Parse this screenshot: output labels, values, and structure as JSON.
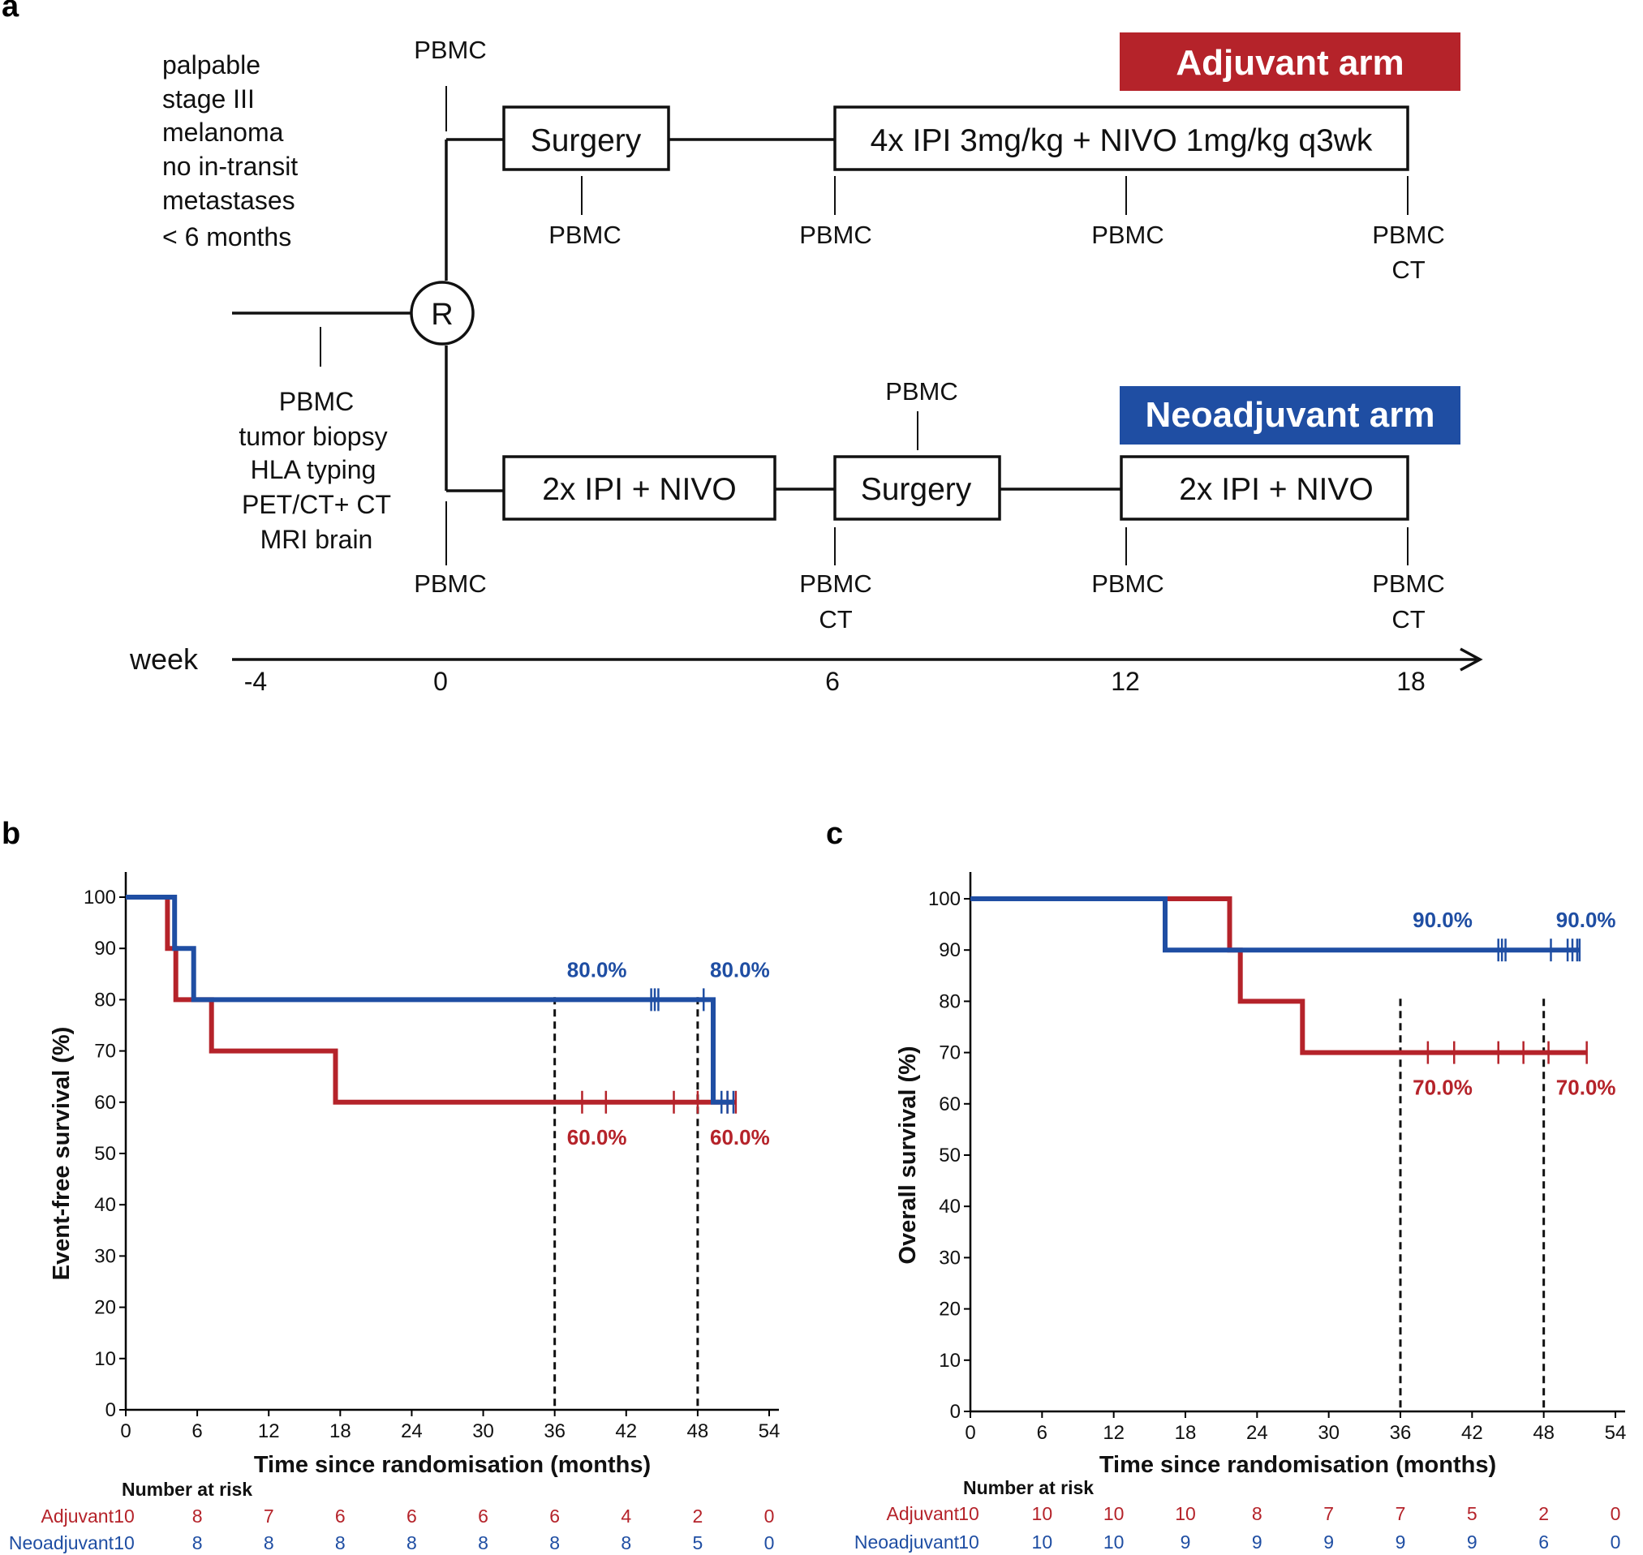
{
  "panel_a": {
    "label": "a",
    "arm_adjuvant": {
      "title": "Adjuvant arm",
      "color": "#b5232a"
    },
    "arm_neoadjuvant": {
      "title": "Neoadjuvant arm",
      "color": "#1f4ea3"
    },
    "inclusion": [
      "palpable",
      "stage III",
      "melanoma",
      "no in-transit",
      "metastases",
      "< 6 months"
    ],
    "baseline": [
      "PBMC",
      "tumor biopsy",
      "HLA typing",
      "PET/CT+ CT",
      "MRI brain"
    ],
    "randomisation": "R",
    "adj_boxes": [
      "Surgery",
      "4x IPI 3mg/kg + NIVO 1mg/kg q3wk"
    ],
    "neo_boxes": [
      "2x IPI + NIVO",
      "Surgery",
      "2x IPI + NIVO"
    ],
    "pbmc": "PBMC",
    "ct": "CT",
    "week_label": "week",
    "week_ticks": [
      "-4",
      "0",
      "6",
      "12",
      "18"
    ]
  },
  "chart_data": [
    {
      "type": "line",
      "panel_label": "b",
      "title": "",
      "xlabel": "Time since randomisation (months)",
      "ylabel": "Event-free survival (%)",
      "xlim": [
        0,
        54
      ],
      "ylim": [
        0,
        100
      ],
      "xticks": [
        0,
        6,
        12,
        18,
        24,
        30,
        36,
        42,
        48,
        54
      ],
      "yticks": [
        0,
        10,
        20,
        30,
        40,
        50,
        60,
        70,
        80,
        90,
        100
      ],
      "reference_lines_x": [
        36,
        48
      ],
      "series": [
        {
          "name": "Adjuvant",
          "color": "#b5232a",
          "steps": [
            [
              0,
              100
            ],
            [
              3.5,
              100
            ],
            [
              3.5,
              90
            ],
            [
              4.2,
              90
            ],
            [
              4.2,
              80
            ],
            [
              7.2,
              80
            ],
            [
              7.2,
              70
            ],
            [
              17.6,
              70
            ],
            [
              17.6,
              60
            ],
            [
              51.2,
              60
            ]
          ],
          "censors": [
            38.3,
            40.3,
            46,
            48,
            50.5,
            51.2
          ],
          "labels": [
            {
              "x": 36,
              "text": "60.0%"
            },
            {
              "x": 48,
              "text": "60.0%"
            }
          ]
        },
        {
          "name": "Neoadjuvant",
          "color": "#1f4ea3",
          "steps": [
            [
              0,
              100
            ],
            [
              4.1,
              100
            ],
            [
              4.1,
              90
            ],
            [
              5.7,
              90
            ],
            [
              5.7,
              80
            ],
            [
              49.3,
              80
            ],
            [
              49.3,
              60
            ],
            [
              51,
              60
            ]
          ],
          "censors": [
            44.1,
            44.4,
            44.7,
            48.5,
            50,
            50.5,
            51
          ],
          "labels": [
            {
              "x": 36,
              "text": "80.0%"
            },
            {
              "x": 48,
              "text": "80.0%"
            }
          ]
        }
      ],
      "number_at_risk": {
        "title": "Number at risk",
        "rows": [
          {
            "name": "Adjuvant",
            "values": [
              "10",
              "8",
              "7",
              "6",
              "6",
              "6",
              "6",
              "4",
              "2",
              "0"
            ]
          },
          {
            "name": "Neoadjuvant",
            "values": [
              "10",
              "8",
              "8",
              "8",
              "8",
              "8",
              "8",
              "8",
              "5",
              "0"
            ]
          }
        ]
      }
    },
    {
      "type": "line",
      "panel_label": "c",
      "title": "",
      "xlabel": "Time since randomisation (months)",
      "ylabel": "Overall survival (%)",
      "xlim": [
        0,
        54
      ],
      "ylim": [
        0,
        100
      ],
      "xticks": [
        0,
        6,
        12,
        18,
        24,
        30,
        36,
        42,
        48,
        54
      ],
      "yticks": [
        0,
        10,
        20,
        30,
        40,
        50,
        60,
        70,
        80,
        90,
        100
      ],
      "reference_lines_x": [
        36,
        48
      ],
      "series": [
        {
          "name": "Adjuvant",
          "color": "#b5232a",
          "steps": [
            [
              0,
              100
            ],
            [
              21.7,
              100
            ],
            [
              21.7,
              90
            ],
            [
              22.6,
              90
            ],
            [
              22.6,
              80
            ],
            [
              27.8,
              80
            ],
            [
              27.8,
              70
            ],
            [
              51.6,
              70
            ]
          ],
          "censors": [
            38.3,
            40.5,
            44.2,
            46.3,
            48.4,
            51.6
          ],
          "labels": [
            {
              "x": 36,
              "text": "70.0%"
            },
            {
              "x": 48,
              "text": "70.0%"
            }
          ]
        },
        {
          "name": "Neoadjuvant",
          "color": "#1f4ea3",
          "steps": [
            [
              0,
              100
            ],
            [
              16.3,
              100
            ],
            [
              16.3,
              90
            ],
            [
              51,
              90
            ]
          ],
          "censors": [
            44.2,
            44.5,
            44.8,
            48.6,
            50,
            50.4,
            50.8,
            51
          ],
          "labels": [
            {
              "x": 36,
              "text": "90.0%"
            },
            {
              "x": 48,
              "text": "90.0%"
            }
          ]
        }
      ],
      "number_at_risk": {
        "title": "Number at risk",
        "rows": [
          {
            "name": "Adjuvant",
            "values": [
              "10",
              "10",
              "10",
              "10",
              "8",
              "7",
              "7",
              "5",
              "2",
              "0"
            ]
          },
          {
            "name": "Neoadjuvant",
            "values": [
              "10",
              "10",
              "10",
              "9",
              "9",
              "9",
              "9",
              "9",
              "6",
              "0"
            ]
          }
        ]
      }
    }
  ]
}
